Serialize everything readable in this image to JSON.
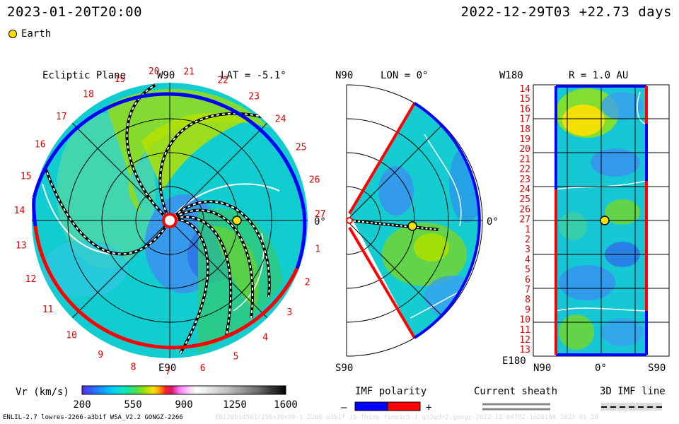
{
  "header": {
    "left_datetime": "2023-01-20T20:00",
    "right_datetime": "2022-12-29T03 +22.73 days"
  },
  "legend": {
    "earth_label": "Earth"
  },
  "ecliptic": {
    "title": "Ecliptic Plane",
    "lat": "LAT = -5.1°",
    "top_label": "W90",
    "bottom_label": "E90",
    "right_label": "0°",
    "ticks": [
      "20",
      "21",
      "22",
      "23",
      "24",
      "25",
      "26",
      "27",
      "1",
      "2",
      "3",
      "4",
      "5",
      "6",
      "7",
      "8",
      "9",
      "10",
      "11",
      "12",
      "13",
      "14",
      "15",
      "16",
      "17",
      "18",
      "19"
    ]
  },
  "meridional": {
    "lon": "LON = 0°",
    "top_label": "N90",
    "bottom_label": "S90",
    "right_label": "0°"
  },
  "synoptic": {
    "title": "R = 1.0 AU",
    "top_left": "W180",
    "bottom_left": "E180",
    "x_labels": [
      "N90",
      "0°",
      "S90"
    ],
    "rows": [
      "14",
      "15",
      "16",
      "17",
      "18",
      "19",
      "20",
      "21",
      "22",
      "23",
      "24",
      "25",
      "26",
      "27",
      "1",
      "2",
      "3",
      "4",
      "5",
      "6",
      "7",
      "8",
      "9",
      "10",
      "11",
      "12",
      "13"
    ]
  },
  "colorbar": {
    "label": "Vr (km/s)",
    "ticks": [
      "200",
      "550",
      "900",
      "1250",
      "1600"
    ]
  },
  "imf": {
    "title": "IMF polarity",
    "minus": "–",
    "plus": "+"
  },
  "sheath": {
    "title": "Current sheath"
  },
  "imf3d": {
    "title": "3D IMF line"
  },
  "footer": {
    "left": "ENLIL-2.7 lowres-2266-a3b1f WSA_V2.2 GONGZ-2266",
    "faint": "E0120514501/256x30x90-1 2266-a3b1f-15-fhisp fume1c5-1 g53qdr2.gongz-2022-12-04T0Z-1m20100 2023-01-20"
  },
  "colors": {
    "earth": "#ffe000",
    "imf_negative": "#0000ff",
    "imf_positive": "#ff0000",
    "tick_red": "#dd0000"
  }
}
